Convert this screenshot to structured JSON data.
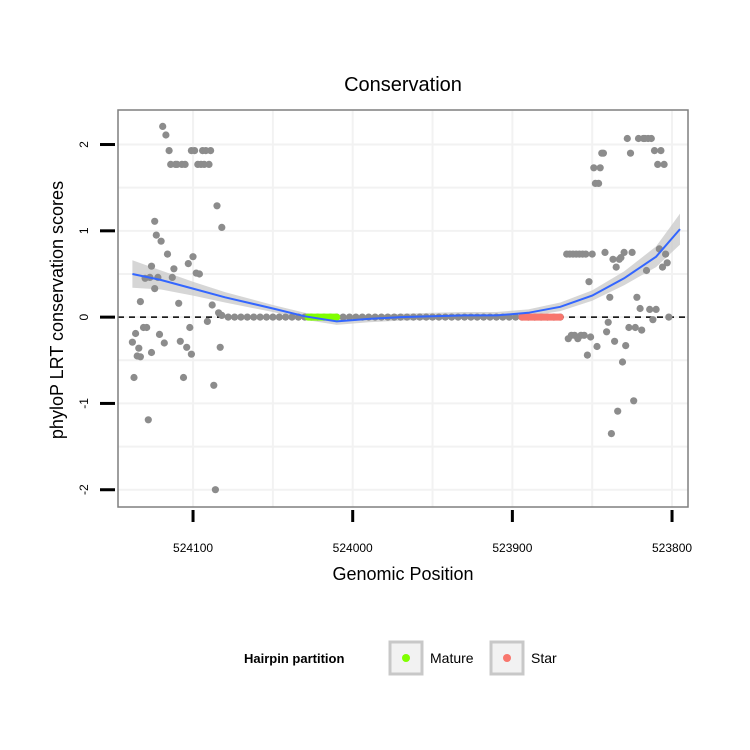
{
  "chart_data": {
    "type": "scatter",
    "title": "Conservation",
    "xlabel": "Genomic Position",
    "ylabel": "phyloP LRT conservation scores",
    "x_reversed": true,
    "xlim": [
      524147,
      523790
    ],
    "ylim": [
      -2.2,
      2.4
    ],
    "x_ticks": [
      524100,
      524000,
      523900,
      523800
    ],
    "x_tick_labels": [
      "524100",
      "524000",
      "523900",
      "523800"
    ],
    "y_ticks": [
      2,
      1,
      0,
      -1,
      -2
    ],
    "y_tick_labels": [
      "2",
      "1",
      "0",
      "-1",
      "-2"
    ],
    "reference_line": {
      "y": 0,
      "style": "dashed"
    },
    "grid": true,
    "colors": {
      "points": "#8c8c8c",
      "smooth": "#3366ff",
      "ribbon": "#c8c8c8",
      "mature": "#80ff00",
      "star": "#f8766d",
      "panel_border": "#7f7f7f",
      "grid": "#f2f2f2"
    },
    "series": [
      {
        "name": "scores",
        "points": [
          [
            524138,
            -0.29
          ],
          [
            524137,
            -0.7
          ],
          [
            524136,
            -0.19
          ],
          [
            524135,
            -0.45
          ],
          [
            524134,
            -0.36
          ],
          [
            524133,
            0.18
          ],
          [
            524133,
            -0.46
          ],
          [
            524131,
            -0.12
          ],
          [
            524130,
            0.45
          ],
          [
            524129,
            -0.12
          ],
          [
            524128,
            -1.19
          ],
          [
            524127,
            0.46
          ],
          [
            524126,
            0.59
          ],
          [
            524126,
            -0.41
          ],
          [
            524124,
            1.11
          ],
          [
            524124,
            0.33
          ],
          [
            524123,
            0.95
          ],
          [
            524122,
            0.46
          ],
          [
            524121,
            -0.2
          ],
          [
            524120,
            0.88
          ],
          [
            524119,
            2.21
          ],
          [
            524118,
            -0.3
          ],
          [
            524117,
            2.11
          ],
          [
            524116,
            0.73
          ],
          [
            524115,
            1.93
          ],
          [
            524114,
            1.77
          ],
          [
            524113,
            0.46
          ],
          [
            524112,
            0.56
          ],
          [
            524111,
            1.77
          ],
          [
            524110,
            1.77
          ],
          [
            524109,
            0.16
          ],
          [
            524108,
            -0.28
          ],
          [
            524107,
            1.77
          ],
          [
            524106,
            -0.7
          ],
          [
            524105,
            1.77
          ],
          [
            524104,
            -0.35
          ],
          [
            524103,
            0.62
          ],
          [
            524102,
            -0.12
          ],
          [
            524101,
            -0.43
          ],
          [
            524101,
            1.93
          ],
          [
            524100,
            0.7
          ],
          [
            524099,
            1.93
          ],
          [
            524098,
            0.51
          ],
          [
            524097,
            1.77
          ],
          [
            524096,
            0.5
          ],
          [
            524095,
            1.77
          ],
          [
            524094,
            1.93
          ],
          [
            524093,
            1.77
          ],
          [
            524092,
            1.93
          ],
          [
            524091,
            -0.05
          ],
          [
            524090,
            1.77
          ],
          [
            524089,
            1.93
          ],
          [
            524088,
            0.14
          ],
          [
            524087,
            -0.79
          ],
          [
            524086,
            -2.0
          ],
          [
            524085,
            1.29
          ],
          [
            524084,
            0.05
          ],
          [
            524083,
            -0.35
          ],
          [
            524082,
            1.04
          ],
          [
            524082,
            0.02
          ],
          [
            524078,
            0
          ],
          [
            524074,
            0
          ],
          [
            524070,
            0
          ],
          [
            524066,
            0
          ],
          [
            524062,
            0
          ],
          [
            524058,
            0
          ],
          [
            524054,
            0
          ],
          [
            524050,
            0
          ],
          [
            524046,
            0
          ],
          [
            524042,
            0
          ],
          [
            524038,
            0
          ],
          [
            524034,
            0
          ],
          [
            524030,
            0
          ],
          [
            524026,
            0
          ],
          [
            524022,
            0
          ],
          [
            524018,
            0
          ],
          [
            524014,
            0
          ],
          [
            524010,
            0
          ],
          [
            524006,
            0
          ],
          [
            524002,
            0
          ],
          [
            523998,
            0
          ],
          [
            523994,
            0
          ],
          [
            523990,
            0
          ],
          [
            523986,
            0
          ],
          [
            523982,
            0
          ],
          [
            523978,
            0
          ],
          [
            523974,
            0
          ],
          [
            523970,
            0
          ],
          [
            523966,
            0
          ],
          [
            523962,
            0
          ],
          [
            523958,
            0
          ],
          [
            523954,
            0
          ],
          [
            523950,
            0
          ],
          [
            523946,
            0
          ],
          [
            523942,
            0
          ],
          [
            523938,
            0
          ],
          [
            523934,
            0
          ],
          [
            523930,
            0
          ],
          [
            523926,
            0
          ],
          [
            523922,
            0
          ],
          [
            523918,
            0
          ],
          [
            523914,
            0
          ],
          [
            523910,
            0
          ],
          [
            523906,
            0
          ],
          [
            523902,
            0
          ],
          [
            523898,
            0
          ],
          [
            523894,
            0
          ],
          [
            523890,
            0
          ],
          [
            523886,
            0
          ],
          [
            523882,
            0
          ],
          [
            523878,
            0
          ],
          [
            523874,
            0
          ],
          [
            523870,
            0
          ],
          [
            523866,
            0.73
          ],
          [
            523865,
            -0.25
          ],
          [
            523864,
            0.73
          ],
          [
            523863,
            -0.21
          ],
          [
            523862,
            0.73
          ],
          [
            523861,
            -0.21
          ],
          [
            523860,
            0.73
          ],
          [
            523859,
            -0.25
          ],
          [
            523858,
            0.73
          ],
          [
            523857,
            -0.21
          ],
          [
            523856,
            0.73
          ],
          [
            523855,
            -0.21
          ],
          [
            523854,
            0.73
          ],
          [
            523853,
            -0.44
          ],
          [
            523852,
            0.41
          ],
          [
            523851,
            -0.23
          ],
          [
            523850,
            0.73
          ],
          [
            523849,
            1.73
          ],
          [
            523848,
            1.55
          ],
          [
            523847,
            -0.34
          ],
          [
            523846,
            1.55
          ],
          [
            523845,
            1.73
          ],
          [
            523844,
            1.9
          ],
          [
            523843,
            1.9
          ],
          [
            523842,
            0.75
          ],
          [
            523841,
            -0.17
          ],
          [
            523840,
            -0.06
          ],
          [
            523839,
            0.23
          ],
          [
            523838,
            -1.35
          ],
          [
            523837,
            0.67
          ],
          [
            523836,
            -0.28
          ],
          [
            523835,
            0.58
          ],
          [
            523834,
            -1.09
          ],
          [
            523833,
            0.67
          ],
          [
            523832,
            0.69
          ],
          [
            523831,
            -0.52
          ],
          [
            523830,
            0.75
          ],
          [
            523829,
            -0.33
          ],
          [
            523828,
            2.07
          ],
          [
            523827,
            -0.12
          ],
          [
            523826,
            1.9
          ],
          [
            523825,
            0.75
          ],
          [
            523824,
            -0.97
          ],
          [
            523823,
            -0.12
          ],
          [
            523822,
            0.23
          ],
          [
            523821,
            2.07
          ],
          [
            523820,
            0.1
          ],
          [
            523819,
            -0.15
          ],
          [
            523818,
            2.07
          ],
          [
            523817,
            2.07
          ],
          [
            523816,
            0.54
          ],
          [
            523815,
            2.07
          ],
          [
            523814,
            0.09
          ],
          [
            523813,
            2.07
          ],
          [
            523812,
            -0.03
          ],
          [
            523811,
            1.93
          ],
          [
            523810,
            0.09
          ],
          [
            523809,
            1.77
          ],
          [
            523808,
            0.79
          ],
          [
            523807,
            1.93
          ],
          [
            523806,
            0.58
          ],
          [
            523805,
            1.77
          ],
          [
            523804,
            0.73
          ],
          [
            523803,
            0.63
          ],
          [
            523802,
            0.0
          ]
        ]
      },
      {
        "name": "Mature",
        "x_range": [
          524028,
          524010
        ],
        "y": 0
      },
      {
        "name": "Star",
        "x_range": [
          523894,
          523870
        ],
        "y": 0
      },
      {
        "name": "loess-smooth",
        "points": [
          [
            524138,
            0.5
          ],
          [
            524120,
            0.43
          ],
          [
            524100,
            0.33
          ],
          [
            524080,
            0.23
          ],
          [
            524050,
            0.1
          ],
          [
            524030,
            0.01
          ],
          [
            524010,
            -0.05
          ],
          [
            523990,
            -0.02
          ],
          [
            523970,
            0.0
          ],
          [
            523950,
            0.01
          ],
          [
            523930,
            0.02
          ],
          [
            523910,
            0.02
          ],
          [
            523890,
            0.05
          ],
          [
            523870,
            0.12
          ],
          [
            523850,
            0.25
          ],
          [
            523830,
            0.45
          ],
          [
            523810,
            0.7
          ],
          [
            523795,
            1.02
          ]
        ],
        "ribbon_halfwidth": [
          0.16,
          0.11,
          0.08,
          0.06,
          0.04,
          0.04,
          0.04,
          0.04,
          0.04,
          0.04,
          0.04,
          0.04,
          0.04,
          0.05,
          0.06,
          0.08,
          0.12,
          0.18
        ]
      }
    ],
    "legend": {
      "title": "Hairpin partition",
      "position": "bottom",
      "entries": [
        {
          "label": "Mature",
          "color": "#80ff00"
        },
        {
          "label": "Star",
          "color": "#f8766d"
        }
      ]
    }
  }
}
